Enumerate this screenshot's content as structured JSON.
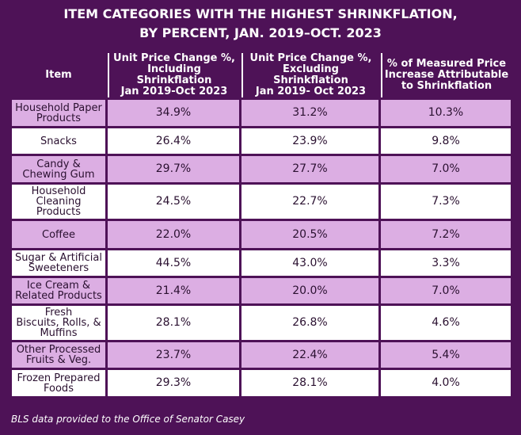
{
  "title": {
    "line1": "ITEM CATEGORIES WITH THE HIGHEST SHRINKFLATION,",
    "line2": "BY PERCENT, JAN. 2019–OCT. 2023"
  },
  "footer": "BLS data provided to the Office of Senator Casey",
  "colors": {
    "background": "#4e1257",
    "row_shaded": "#dcaee3",
    "row_plain": "#ffffff"
  },
  "chart_data": {
    "type": "table",
    "columns": [
      "Item",
      "Unit Price Change %, Including Shrinkflation Jan 2019-Oct 2023",
      "Unit Price Change %, Excluding Shrinkflation Jan 2019- Oct 2023",
      "% of Measured Price Increase Attributable to Shrinkflation"
    ],
    "header_lines": [
      [
        "Item"
      ],
      [
        "Unit Price Change %,",
        "Including Shrinkflation",
        "Jan 2019-Oct 2023"
      ],
      [
        "Unit Price Change %,",
        "Excluding Shrinkflation",
        "Jan 2019- Oct 2023"
      ],
      [
        "% of Measured Price",
        "Increase Attributable",
        "to Shrinkflation"
      ]
    ],
    "rows": [
      {
        "item_lines": [
          "Household Paper",
          "Products"
        ],
        "incl": "34.9%",
        "excl": "31.2%",
        "share": "10.3%"
      },
      {
        "item_lines": [
          "Snacks"
        ],
        "incl": "26.4%",
        "excl": "23.9%",
        "share": "9.8%"
      },
      {
        "item_lines": [
          "Candy &",
          "Chewing Gum"
        ],
        "incl": "29.7%",
        "excl": "27.7%",
        "share": "7.0%"
      },
      {
        "item_lines": [
          "Household",
          "Cleaning",
          "Products"
        ],
        "incl": "24.5%",
        "excl": "22.7%",
        "share": "7.3%"
      },
      {
        "item_lines": [
          "Coffee"
        ],
        "incl": "22.0%",
        "excl": "20.5%",
        "share": "7.2%"
      },
      {
        "item_lines": [
          "Sugar & Artificial",
          "Sweeteners"
        ],
        "incl": "44.5%",
        "excl": "43.0%",
        "share": "3.3%"
      },
      {
        "item_lines": [
          "Ice Cream &",
          "Related Products"
        ],
        "incl": "21.4%",
        "excl": "20.0%",
        "share": "7.0%"
      },
      {
        "item_lines": [
          "Fresh",
          "Biscuits, Rolls, &",
          "Muffins"
        ],
        "incl": "28.1%",
        "excl": "26.8%",
        "share": "4.6%"
      },
      {
        "item_lines": [
          "Other Processed",
          "Fruits & Veg."
        ],
        "incl": "23.7%",
        "excl": "22.4%",
        "share": "5.4%"
      },
      {
        "item_lines": [
          "Frozen Prepared",
          "Foods"
        ],
        "incl": "29.3%",
        "excl": "28.1%",
        "share": "4.0%"
      }
    ]
  }
}
